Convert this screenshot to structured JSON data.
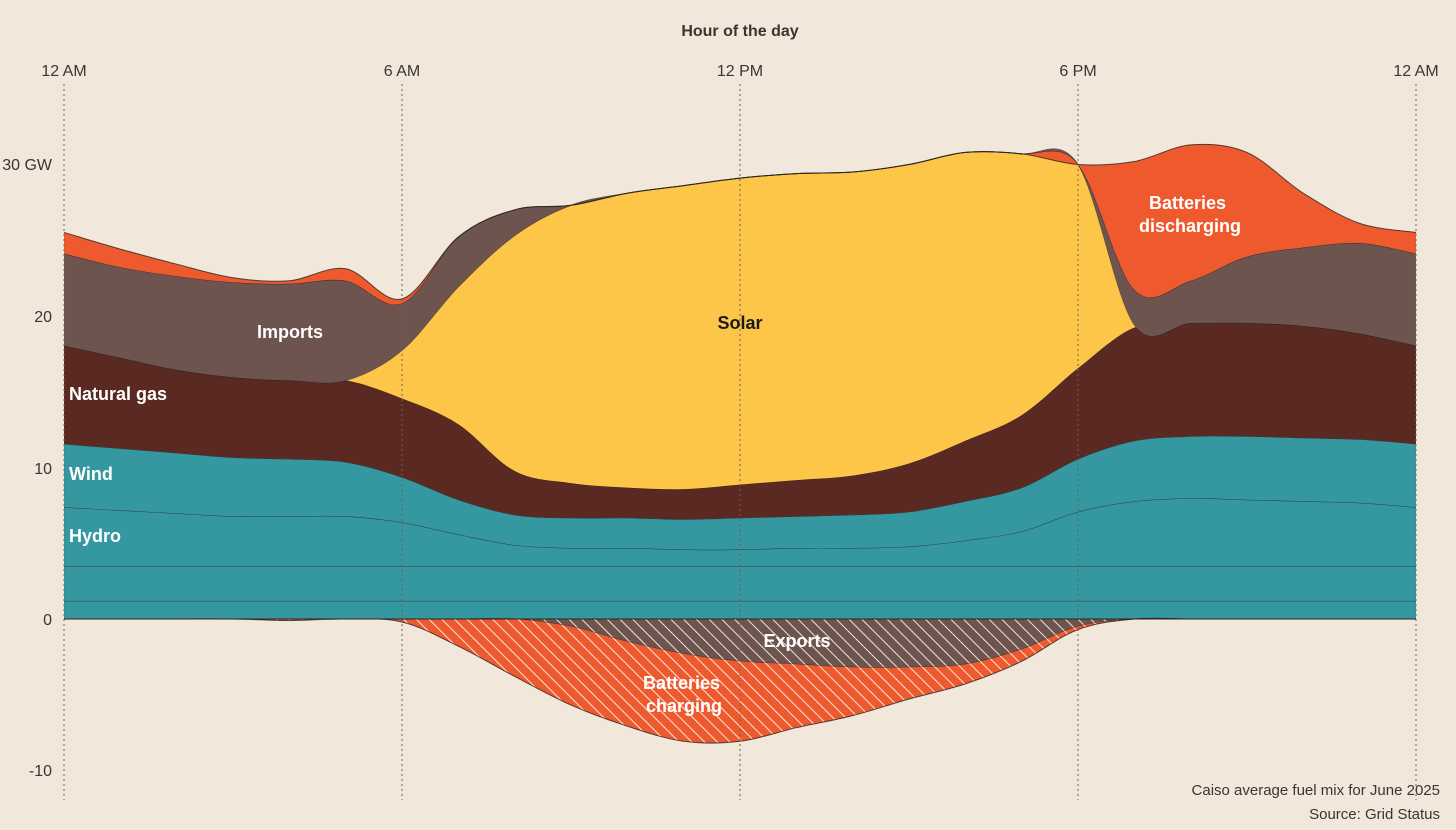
{
  "chart_data": {
    "type": "area",
    "xlabel": "Hour of the day",
    "x_ticks": [
      "12 AM",
      "6 AM",
      "12 PM",
      "6 PM",
      "12 AM"
    ],
    "y_ticks": [
      "30 GW",
      "20",
      "10",
      "0",
      "-10"
    ],
    "ylim": [
      -12,
      34
    ],
    "x": [
      0,
      1,
      2,
      3,
      4,
      5,
      6,
      7,
      8,
      9,
      10,
      11,
      12,
      13,
      14,
      15,
      16,
      17,
      18,
      19,
      20,
      21,
      22,
      23,
      24
    ],
    "series": [
      {
        "name": "",
        "values": [
          1.2,
          1.2,
          1.2,
          1.2,
          1.2,
          1.2,
          1.2,
          1.2,
          1.2,
          1.2,
          1.2,
          1.2,
          1.2,
          1.2,
          1.2,
          1.2,
          1.2,
          1.2,
          1.2,
          1.2,
          1.2,
          1.2,
          1.2,
          1.2,
          1.2
        ],
        "color": "#3597A0"
      },
      {
        "name": "",
        "values": [
          2.3,
          2.3,
          2.3,
          2.3,
          2.3,
          2.3,
          2.3,
          2.3,
          2.3,
          2.3,
          2.3,
          2.3,
          2.3,
          2.3,
          2.3,
          2.3,
          2.3,
          2.3,
          2.3,
          2.3,
          2.3,
          2.3,
          2.3,
          2.3,
          2.3
        ],
        "color": "#3597A0"
      },
      {
        "name": "Hydro",
        "values": [
          3.9,
          3.7,
          3.5,
          3.3,
          3.3,
          3.3,
          2.9,
          2.1,
          1.4,
          1.2,
          1.2,
          1.1,
          1.1,
          1.2,
          1.2,
          1.3,
          1.7,
          2.3,
          3.6,
          4.3,
          4.5,
          4.4,
          4.3,
          4.2,
          3.9
        ],
        "color": "#3597A0"
      },
      {
        "name": "Wind",
        "values": [
          4.2,
          4.1,
          4.0,
          3.9,
          3.8,
          3.6,
          3.0,
          2.3,
          2.0,
          2.0,
          2.0,
          2.0,
          2.1,
          2.1,
          2.2,
          2.3,
          2.6,
          2.9,
          3.5,
          4.0,
          4.1,
          4.2,
          4.2,
          4.2,
          4.2
        ],
        "color": "#3597A0"
      },
      {
        "name": "Natural gas",
        "values": [
          6.5,
          6.0,
          5.5,
          5.3,
          5.2,
          5.4,
          5.2,
          5.0,
          2.9,
          2.3,
          2.0,
          2.0,
          2.2,
          2.4,
          2.6,
          3.2,
          4.0,
          4.8,
          6.0,
          7.5,
          7.5,
          7.5,
          7.4,
          7.0,
          6.5
        ],
        "color": "#5A2A22"
      },
      {
        "name": "Solar",
        "values": [
          0,
          0,
          0,
          0,
          0,
          0,
          3.2,
          9.1,
          15.6,
          18.4,
          19.5,
          20.1,
          20.3,
          20.3,
          20.1,
          19.8,
          19.1,
          17.3,
          13.5,
          0.2,
          0,
          0,
          0,
          0,
          0
        ],
        "color": "#FDC648"
      },
      {
        "name": "Imports",
        "values": [
          6.1,
          6.0,
          6.2,
          6.3,
          6.4,
          6.6,
          3.1,
          3.3,
          1.7,
          0.0,
          0.0,
          0.0,
          0.0,
          0.0,
          0.0,
          0.0,
          0.0,
          0.0,
          0.0,
          2.3,
          2.8,
          4.4,
          5.2,
          6.0,
          6.1
        ],
        "color": "#6D544E"
      },
      {
        "name": "Batteries discharging",
        "values": [
          1.4,
          1.2,
          0.8,
          0.3,
          0.2,
          0.8,
          0.3,
          0.0,
          0.0,
          0.0,
          0.0,
          0.0,
          0.0,
          0.0,
          0.0,
          0.0,
          0.0,
          0.0,
          0.0,
          8.5,
          9.0,
          6.9,
          3.6,
          1.3,
          1.4
        ],
        "color": "#EE5A2E"
      },
      {
        "name": "Exports",
        "values": [
          0,
          0,
          0,
          0,
          0,
          0,
          0,
          0,
          0,
          -0.5,
          -1.5,
          -2.3,
          -2.8,
          -3.0,
          -3.2,
          -3.2,
          -3.0,
          -2.0,
          -0.5,
          0,
          0,
          0,
          0,
          0,
          0
        ],
        "color": "#6D544E",
        "hatched": true
      },
      {
        "name": "Batteries charging",
        "values": [
          0,
          0,
          0,
          0,
          -0.1,
          0,
          -0.2,
          -1.8,
          -3.8,
          -5.2,
          -5.6,
          -5.8,
          -5.3,
          -4.2,
          -3.2,
          -2.1,
          -1.3,
          -0.8,
          -0.2,
          0,
          0,
          0,
          0,
          0,
          0
        ],
        "color": "#EE5A2E",
        "hatched": true
      }
    ]
  },
  "footer": {
    "note": "Caiso average fuel mix for June 2025",
    "source": "Source: Grid Status"
  }
}
